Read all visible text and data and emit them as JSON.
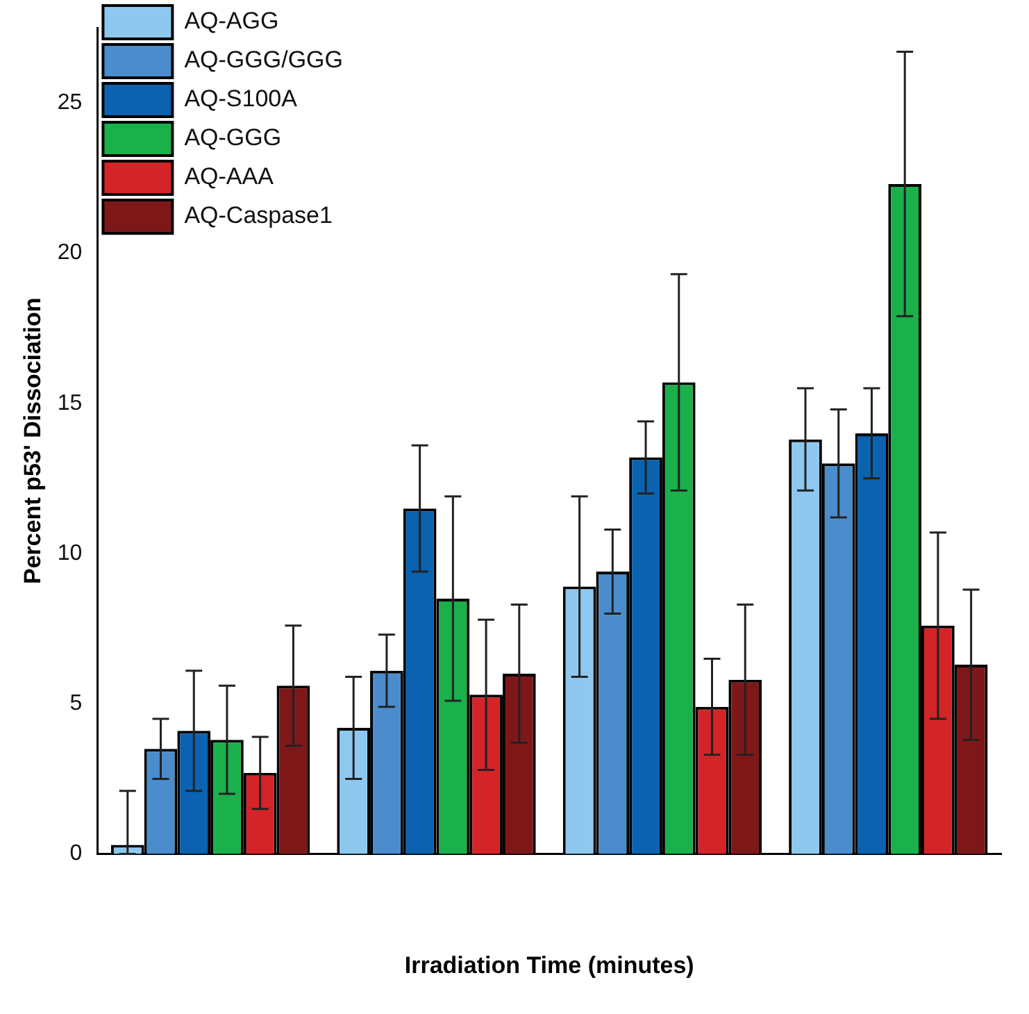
{
  "chart_data": {
    "type": "bar",
    "xlabel": "Irradiation Time (minutes)",
    "ylabel": "Percent p53' Dissociation",
    "categories": [
      null,
      null,
      null,
      null
    ],
    "series": [
      {
        "name": "AQ-AGG",
        "color": "#8ec8ee",
        "values": [
          0.3,
          4.2,
          8.9,
          13.8
        ],
        "errors": [
          [
            0,
            2.1
          ],
          1.7,
          3.0,
          1.7
        ]
      },
      {
        "name": "AQ-GGG/GGG",
        "color": "#4a8ccc",
        "values": [
          3.5,
          6.1,
          9.4,
          13.0
        ],
        "errors": [
          1.0,
          1.2,
          1.4,
          1.8
        ]
      },
      {
        "name": "AQ-S100A",
        "color": "#0a62b0",
        "values": [
          4.1,
          11.5,
          13.2,
          14.0
        ],
        "errors": [
          2.0,
          2.1,
          1.2,
          1.5
        ]
      },
      {
        "name": "AQ-GGG",
        "color": "#1ab04a",
        "values": [
          3.8,
          8.5,
          15.7,
          22.3
        ],
        "errors": [
          1.8,
          3.4,
          3.6,
          4.4
        ]
      },
      {
        "name": "AQ-AAA",
        "color": "#d42428",
        "values": [
          2.7,
          5.3,
          4.9,
          7.6
        ],
        "errors": [
          1.2,
          2.5,
          1.6,
          3.1
        ]
      },
      {
        "name": "AQ-Caspase1",
        "color": "#7e1818",
        "values": [
          5.6,
          6.0,
          5.8,
          6.3
        ],
        "errors": [
          2.0,
          2.3,
          2.5,
          2.5
        ]
      }
    ],
    "ylim": [
      0,
      27.5
    ],
    "yticks": [
      0,
      5,
      10,
      15,
      20,
      25
    ],
    "grid": false,
    "legend": "top left"
  }
}
